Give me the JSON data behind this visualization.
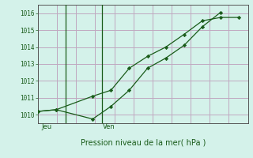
{
  "xlabel": "Pression niveau de la mer( hPa )",
  "background_color": "#d4f2ea",
  "plot_bg_color": "#d4f2ea",
  "grid_color": "#c0a8c0",
  "line_color": "#1a5c1a",
  "line1_x": [
    0,
    1,
    3,
    4,
    5,
    6,
    7,
    8,
    9,
    10
  ],
  "line1_y": [
    1010.2,
    1010.3,
    1009.75,
    1010.5,
    1011.45,
    1012.75,
    1013.35,
    1014.1,
    1015.2,
    1016.05
  ],
  "line2_x": [
    0,
    1,
    3,
    4,
    5,
    6,
    7,
    8,
    9,
    10,
    11
  ],
  "line2_y": [
    1010.2,
    1010.3,
    1011.1,
    1011.45,
    1012.75,
    1013.45,
    1014.0,
    1014.75,
    1015.55,
    1015.75,
    1015.75
  ],
  "vline1_x": 1.5,
  "vline2_x": 3.5,
  "label1": "Jeu",
  "label2": "Ven",
  "ylim": [
    1009.5,
    1016.5
  ],
  "yticks": [
    1010,
    1011,
    1012,
    1013,
    1014,
    1015,
    1016
  ],
  "xlim": [
    0,
    11.5
  ]
}
